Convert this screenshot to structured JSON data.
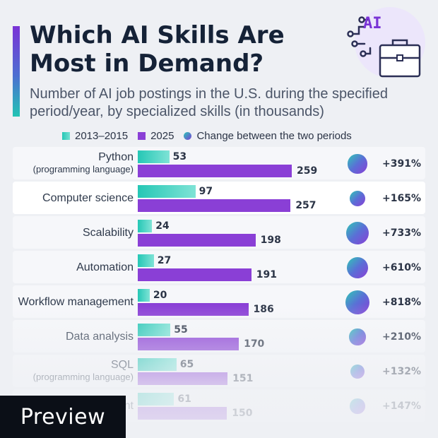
{
  "header": {
    "title": "Which AI Skills Are Most in Demand?",
    "subtitle": "Number of AI job postings in the U.S. during the specified period/year, by specialized skills (in thousands)",
    "icon_text": "AI"
  },
  "legend": {
    "series_a": "2013–2015",
    "series_b": "2025",
    "change": "Change between the two periods"
  },
  "colors": {
    "series_a": "#3ccfbd",
    "series_b": "#8a3fd6",
    "accent_top": "#7a33d6",
    "accent_bottom": "#22c4b4"
  },
  "chart_data": {
    "type": "bar",
    "orientation": "horizontal",
    "title": "Which AI Skills Are Most in Demand?",
    "subtitle": "Number of AI job postings in the U.S. during the specified period/year, by specialized skills (in thousands)",
    "categories": [
      {
        "label": "Python",
        "sublabel": "(programming language)"
      },
      {
        "label": "Computer science",
        "sublabel": ""
      },
      {
        "label": "Scalability",
        "sublabel": ""
      },
      {
        "label": "Automation",
        "sublabel": ""
      },
      {
        "label": "Workflow management",
        "sublabel": ""
      },
      {
        "label": "Data analysis",
        "sublabel": ""
      },
      {
        "label": "SQL",
        "sublabel": "(programming language)"
      },
      {
        "label": "nt",
        "sublabel": ""
      }
    ],
    "series": [
      {
        "name": "2013–2015",
        "values": [
          53,
          97,
          24,
          27,
          20,
          55,
          65,
          61
        ]
      },
      {
        "name": "2025",
        "values": [
          259,
          257,
          198,
          191,
          186,
          170,
          151,
          150
        ]
      }
    ],
    "change": [
      "+391%",
      "+165%",
      "+733%",
      "+610%",
      "+818%",
      "+210%",
      "+132%",
      "+147%"
    ],
    "change_values": [
      391,
      165,
      733,
      610,
      818,
      210,
      132,
      147
    ],
    "xlim": [
      0,
      260
    ],
    "legend_position": "top"
  },
  "badge": {
    "label": "Preview"
  }
}
